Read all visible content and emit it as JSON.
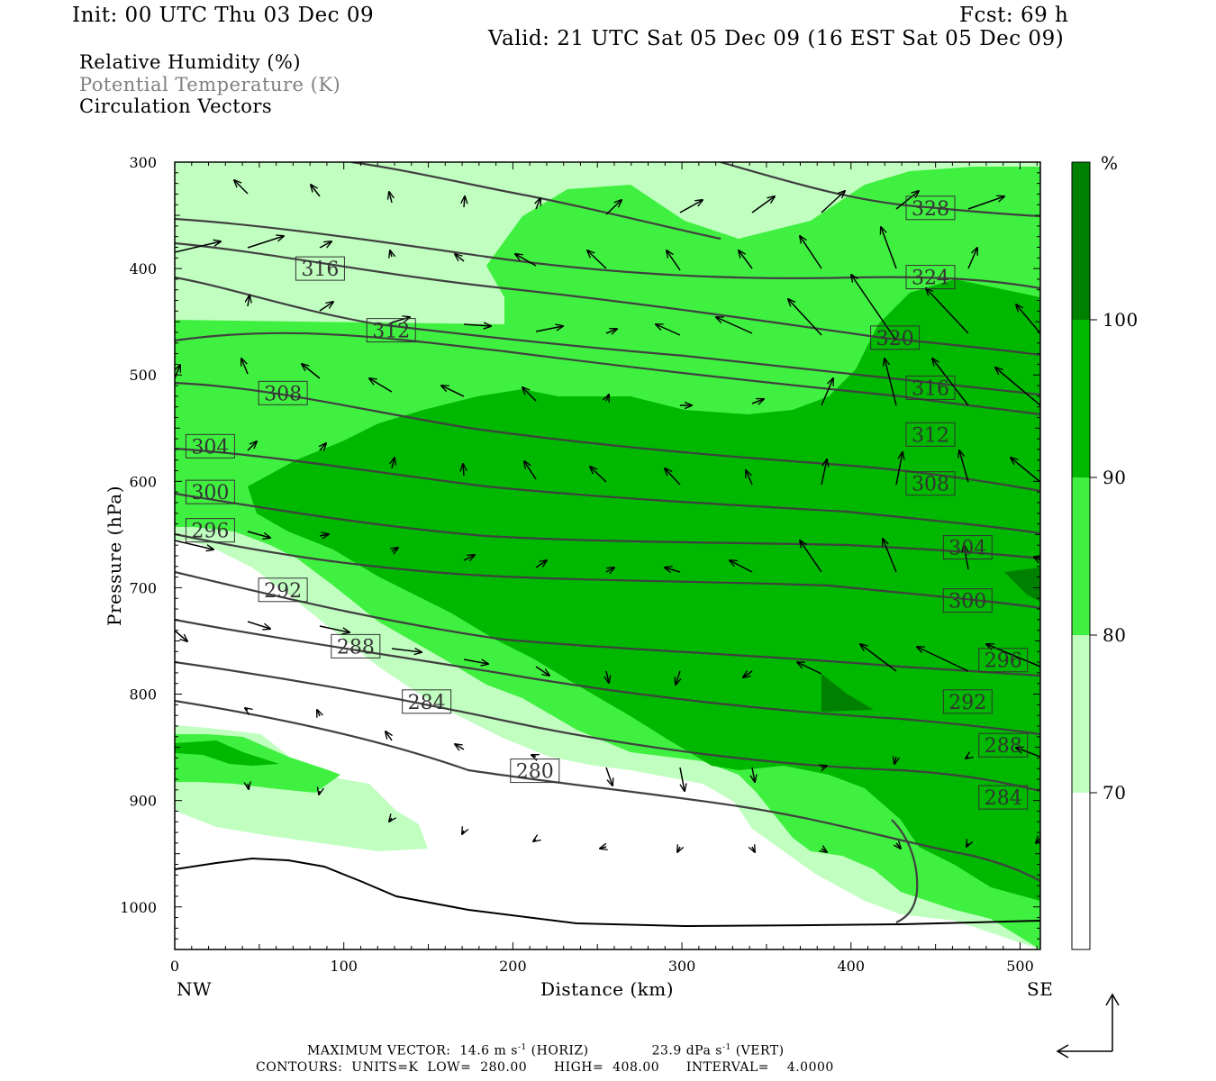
{
  "header": {
    "init": "Init: 00 UTC Thu 03 Dec 09",
    "fcst": "Fcst:   69 h",
    "valid": "Valid: 21 UTC Sat 05 Dec 09 (16 EST Sat 05 Dec 09)"
  },
  "legend": {
    "line1": "Relative Humidity (%)",
    "line2": "Potential Temperature (K)",
    "line3": "Circulation Vectors"
  },
  "footer": {
    "vector_label": "MAXIMUM VECTOR:",
    "horiz_value": "14.6 m s",
    "horiz_unit": "(HORIZ)",
    "vert_value": "23.9 dPa s",
    "vert_unit": "(VERT)",
    "superscript": "-1",
    "contours_line": "CONTOURS:  UNITS=K  LOW=  280.00      HIGH=  408.00      INTERVAL=    4.0000"
  },
  "colors": {
    "rh_70_80": "#c0ffc0",
    "rh_80_90": "#40f040",
    "rh_90_100": "#00b800",
    "rh_100": "#008000",
    "contour": "#404040",
    "vector": "#000000"
  },
  "chart_data": {
    "type": "contour",
    "xlabel": "Distance (km)",
    "ylabel": "Pressure (hPa)",
    "xlim": [
      0,
      512
    ],
    "ylim": [
      1040,
      300
    ],
    "x_ticks": [
      "0",
      "100",
      "200",
      "300",
      "400",
      "500"
    ],
    "y_ticks": [
      "300",
      "400",
      "500",
      "600",
      "700",
      "800",
      "900",
      "1000"
    ],
    "x_end_labels": {
      "left": "NW",
      "right": "SE"
    },
    "colorbar": {
      "unit": "%",
      "levels": [
        "100",
        "90",
        "80",
        "70"
      ],
      "colors": [
        "#008000",
        "#00b800",
        "#40f040",
        "#c0ffc0",
        "#ffffff"
      ]
    },
    "theta_labels": [
      {
        "text": "328",
        "x": 447,
        "p": 343
      },
      {
        "text": "324",
        "x": 447,
        "p": 408
      },
      {
        "text": "316",
        "x": 86,
        "p": 400
      },
      {
        "text": "312",
        "x": 128,
        "p": 458
      },
      {
        "text": "320",
        "x": 426,
        "p": 465
      },
      {
        "text": "316",
        "x": 447,
        "p": 512
      },
      {
        "text": "308",
        "x": 64,
        "p": 517
      },
      {
        "text": "312",
        "x": 447,
        "p": 556
      },
      {
        "text": "304",
        "x": 21,
        "p": 567
      },
      {
        "text": "308",
        "x": 447,
        "p": 602
      },
      {
        "text": "300",
        "x": 21,
        "p": 610
      },
      {
        "text": "296",
        "x": 21,
        "p": 646
      },
      {
        "text": "304",
        "x": 469,
        "p": 662
      },
      {
        "text": "292",
        "x": 64,
        "p": 702
      },
      {
        "text": "300",
        "x": 469,
        "p": 712
      },
      {
        "text": "288",
        "x": 107,
        "p": 755
      },
      {
        "text": "296",
        "x": 490,
        "p": 768
      },
      {
        "text": "284",
        "x": 149,
        "p": 807
      },
      {
        "text": "292",
        "x": 469,
        "p": 807
      },
      {
        "text": "288",
        "x": 490,
        "p": 848
      },
      {
        "text": "280",
        "x": 213,
        "p": 872
      },
      {
        "text": "284",
        "x": 490,
        "p": 897
      }
    ]
  }
}
